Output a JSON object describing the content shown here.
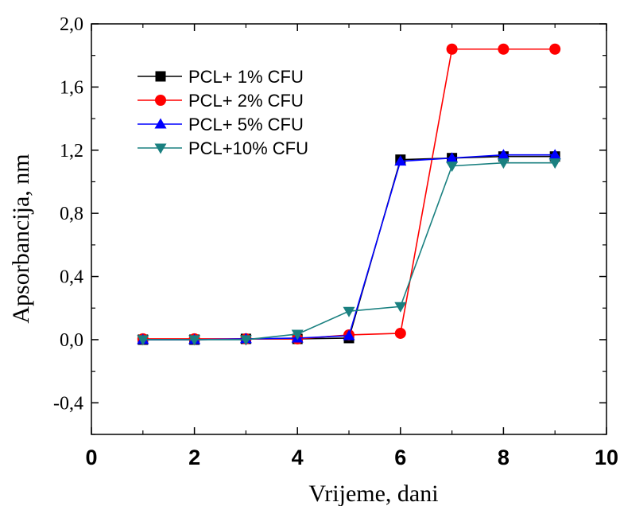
{
  "chart_data": {
    "type": "line",
    "title": "",
    "xlabel": "Vrijeme, dani",
    "ylabel": "Apsorbancija, nm",
    "xlim": [
      0,
      10
    ],
    "ylim": [
      -0.6,
      2.0
    ],
    "x_ticks": [
      0,
      2,
      4,
      6,
      8,
      10
    ],
    "x_tick_labels": [
      "0",
      "2",
      "4",
      "6",
      "8",
      "10"
    ],
    "y_ticks": [
      -0.4,
      0.0,
      0.4,
      0.8,
      1.2,
      1.6,
      2.0
    ],
    "y_tick_labels": [
      "-0,4",
      "0,0",
      "0,4",
      "0,8",
      "1,2",
      "1,6",
      "2,0"
    ],
    "grid": false,
    "legend_position": "top-left",
    "series": [
      {
        "name": "PCL+ 1% CFU",
        "color": "#000000",
        "marker": "square",
        "x": [
          1,
          2,
          3,
          4,
          5,
          6,
          7,
          8,
          9
        ],
        "y": [
          0.0,
          0.0,
          0.005,
          0.005,
          0.01,
          1.14,
          1.15,
          1.16,
          1.16
        ]
      },
      {
        "name": "PCL+ 2% CFU",
        "color": "#ff0000",
        "marker": "circle",
        "x": [
          1,
          2,
          3,
          4,
          5,
          6,
          7,
          8,
          9
        ],
        "y": [
          0.005,
          0.005,
          0.005,
          0.005,
          0.03,
          0.04,
          1.84,
          1.84,
          1.84
        ]
      },
      {
        "name": "PCL+ 5% CFU",
        "color": "#0000ff",
        "marker": "triangle-up",
        "x": [
          1,
          2,
          3,
          4,
          5,
          6,
          7,
          8,
          9
        ],
        "y": [
          0.0,
          0.0,
          0.005,
          0.01,
          0.025,
          1.13,
          1.15,
          1.17,
          1.17
        ]
      },
      {
        "name": "PCL+10% CFU",
        "color": "#1a8080",
        "marker": "triangle-down",
        "x": [
          1,
          2,
          3,
          4,
          5,
          6,
          7,
          8,
          9
        ],
        "y": [
          0.0,
          0.0,
          0.0,
          0.035,
          0.18,
          0.21,
          1.1,
          1.12,
          1.12
        ]
      }
    ]
  }
}
